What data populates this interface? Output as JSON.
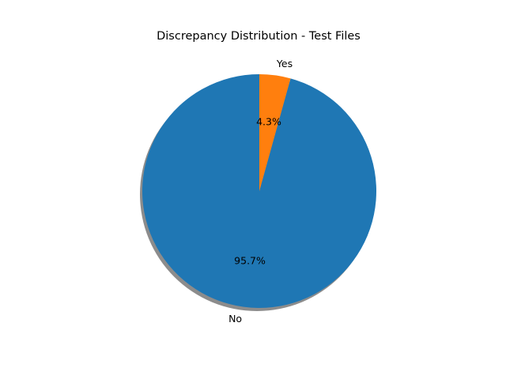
{
  "chart_data": {
    "type": "pie",
    "title": "Discrepancy Distribution - Test Files",
    "categories": [
      "No",
      "Yes"
    ],
    "values": [
      95.7,
      4.3
    ],
    "percent_labels": [
      "95.7%",
      "4.3%"
    ],
    "colors": [
      "#1f77b4",
      "#ff7f0e"
    ],
    "start_angle_deg": 90,
    "direction": "counterclockwise",
    "shadow": true,
    "legend": "none"
  }
}
